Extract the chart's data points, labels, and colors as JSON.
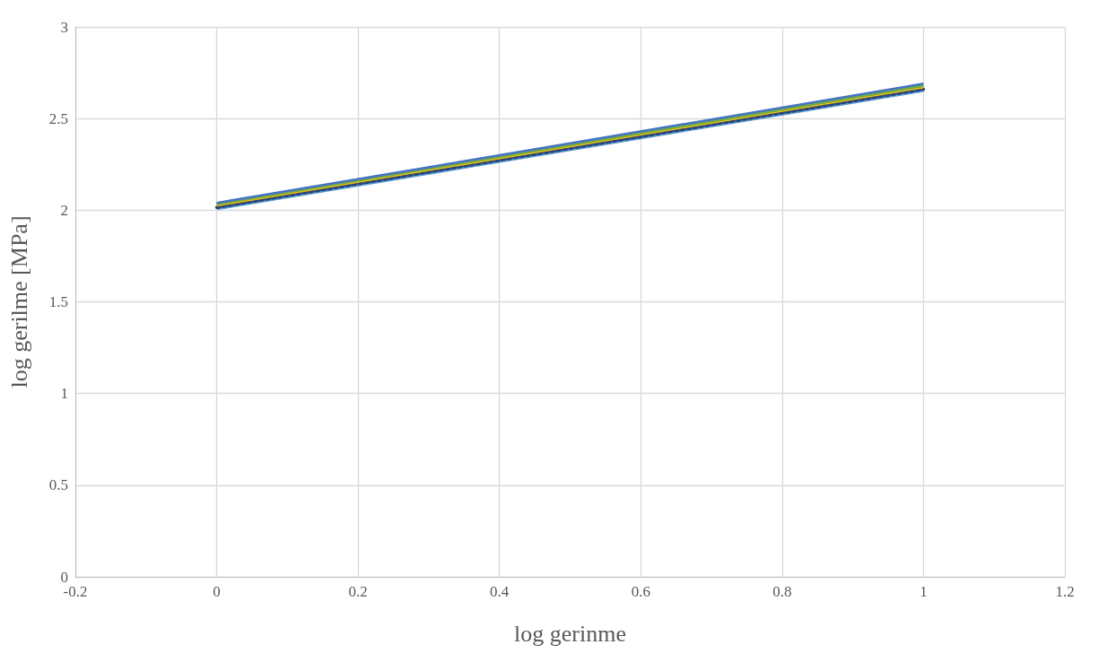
{
  "chart_data": {
    "type": "line",
    "xlabel": "log gerinme",
    "ylabel": "log gerilme [MPa]",
    "x": [
      0,
      1
    ],
    "xlim": [
      -0.2,
      1.2
    ],
    "xticks": [
      -0.2,
      0,
      0.2,
      0.4,
      0.6,
      0.8,
      1,
      1.2
    ],
    "ylim": [
      0,
      3
    ],
    "yticks": [
      0,
      0.5,
      1,
      1.5,
      2,
      2.5,
      3
    ],
    "grid": true,
    "marker": "none",
    "line_style": "solid",
    "series": [
      {
        "color": "#5b9bd5",
        "values": [
          2.015,
          2.66
        ]
      },
      {
        "color": "#264478",
        "values": [
          2.015,
          2.66
        ],
        "line_style": "dotted"
      },
      {
        "color": "#ffc000",
        "values": [
          2.025,
          2.67
        ]
      },
      {
        "color": "#70ad47",
        "values": [
          2.035,
          2.68
        ]
      },
      {
        "color": "#4472c4",
        "values": [
          2.04,
          2.69
        ]
      }
    ]
  }
}
